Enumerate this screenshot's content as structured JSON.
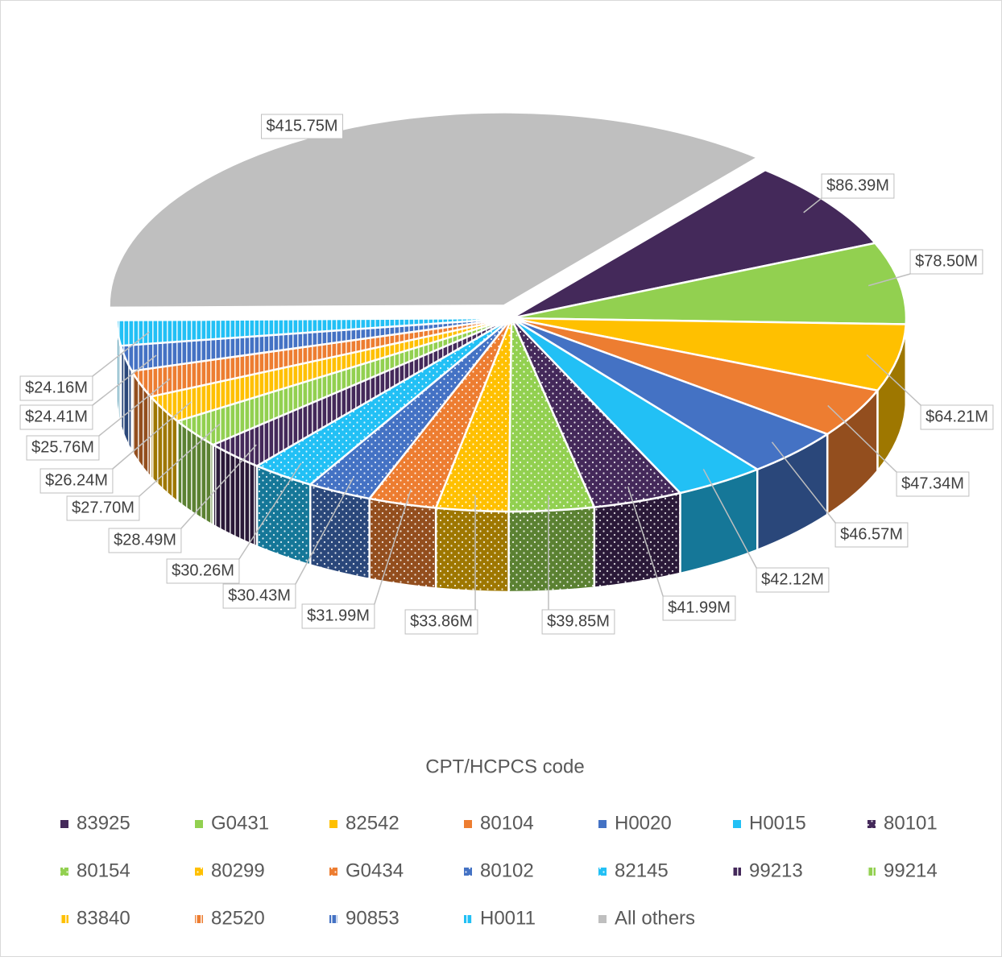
{
  "chart_data": {
    "type": "pie3d",
    "legend_title": "CPT/HCPCS code",
    "categories": [
      "83925",
      "G0431",
      "82542",
      "80104",
      "H0020",
      "H0015",
      "80101",
      "80154",
      "80299",
      "G0434",
      "80102",
      "82145",
      "99213",
      "99214",
      "83840",
      "82520",
      "90853",
      "H0011",
      "All others"
    ],
    "values": [
      86.39,
      78.5,
      64.21,
      47.34,
      46.57,
      42.12,
      41.99,
      39.85,
      33.86,
      31.99,
      30.43,
      30.26,
      28.49,
      27.7,
      26.24,
      25.76,
      24.41,
      24.16,
      415.75
    ],
    "value_labels": [
      "$86.39M",
      "$78.50M",
      "$64.21M",
      "$47.34M",
      "$46.57M",
      "$42.12M",
      "$41.99M",
      "$39.85M",
      "$33.86M",
      "$31.99M",
      "$30.43M",
      "$30.26M",
      "$28.49M",
      "$27.70M",
      "$26.24M",
      "$25.76M",
      "$24.41M",
      "$24.16M",
      "$415.75M"
    ],
    "colors": [
      "#44295a",
      "#92d050",
      "#ffc000",
      "#ed7d31",
      "#4472c4",
      "#22c0f5",
      "#44295a",
      "#92d050",
      "#ffc000",
      "#ed7d31",
      "#4472c4",
      "#22c0f5",
      "#44295a",
      "#92d050",
      "#ffc000",
      "#ed7d31",
      "#4472c4",
      "#22c0f5",
      "#bfbfbf"
    ],
    "patterns": [
      "solid",
      "solid",
      "solid",
      "solid",
      "solid",
      "solid",
      "dots",
      "dots",
      "dots",
      "dots",
      "dots",
      "dots",
      "stripes",
      "stripes",
      "stripes",
      "stripes",
      "stripes",
      "stripes",
      "solid"
    ],
    "legend": "bottom"
  }
}
